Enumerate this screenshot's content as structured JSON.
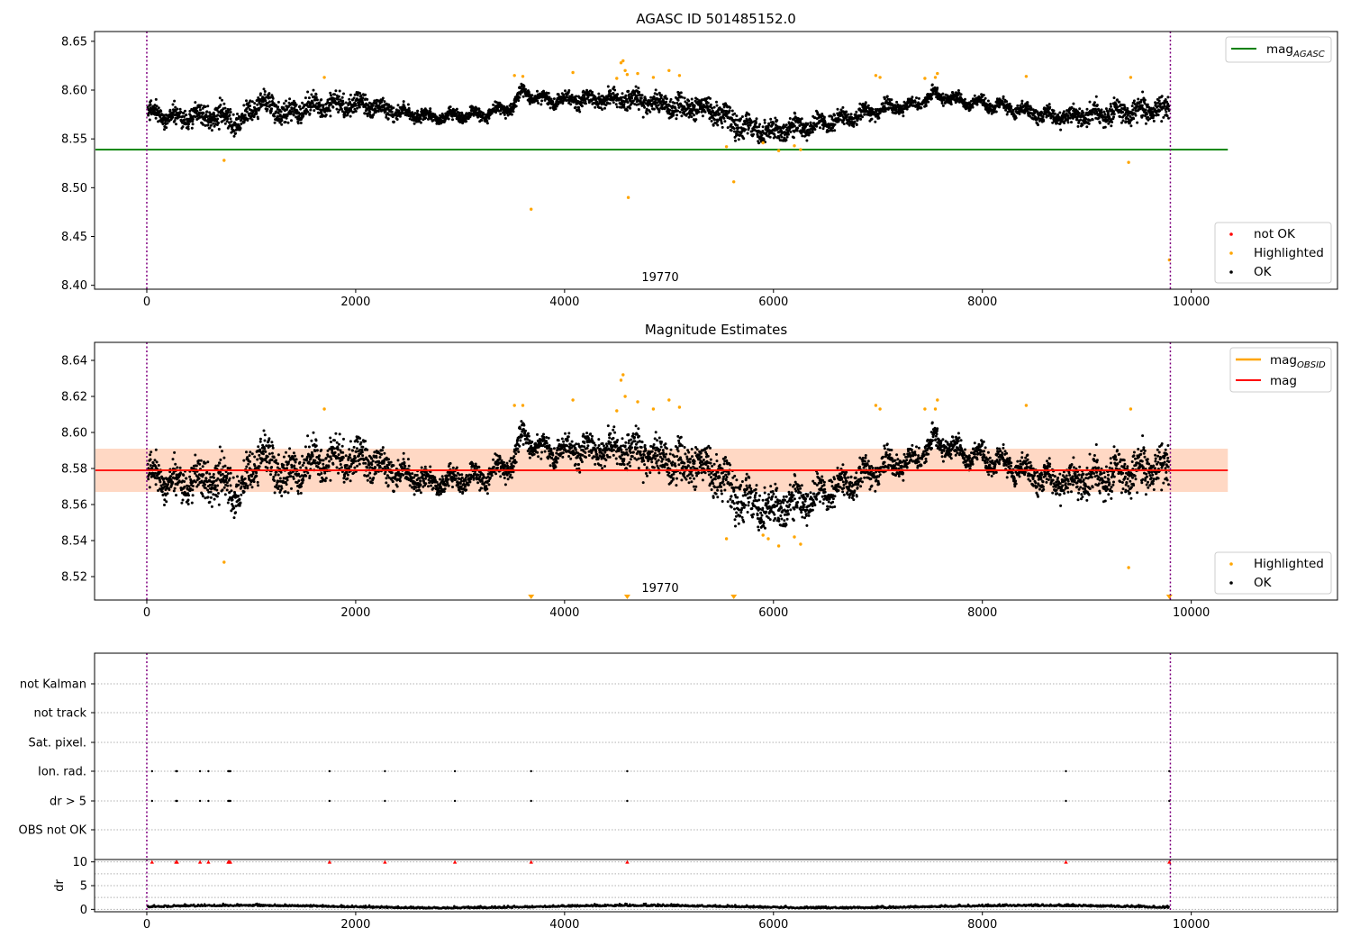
{
  "chart_data": [
    {
      "type": "scatter",
      "title": "AGASC ID 501485152.0",
      "xlim": [
        -500,
        11400
      ],
      "ylim": [
        8.396,
        8.66
      ],
      "xticks": [
        "0",
        "2000",
        "4000",
        "6000",
        "8000",
        "10000"
      ],
      "yticks": [
        "8.40",
        "8.45",
        "8.50",
        "8.55",
        "8.60",
        "8.65"
      ],
      "obsid_label": "19770",
      "obsid_boundaries": [
        0,
        9800
      ],
      "mag_agasc": 8.539,
      "legend_upper": [
        {
          "label": "mag",
          "subscript": "AGASC",
          "color": "#008000"
        }
      ],
      "legend_lower": [
        {
          "label": "not OK",
          "color": "#ff0000"
        },
        {
          "label": "Highlighted",
          "color": "#ffa500"
        },
        {
          "label": "OK",
          "color": "#000000"
        }
      ],
      "highlighted_points": [
        [
          740,
          8.528
        ],
        [
          1700,
          8.613
        ],
        [
          3520,
          8.615
        ],
        [
          3600,
          8.614
        ],
        [
          3680,
          8.478
        ],
        [
          4080,
          8.618
        ],
        [
          4500,
          8.612
        ],
        [
          4540,
          8.628
        ],
        [
          4560,
          8.63
        ],
        [
          4580,
          8.62
        ],
        [
          4600,
          8.616
        ],
        [
          4610,
          8.49
        ],
        [
          4700,
          8.617
        ],
        [
          4850,
          8.613
        ],
        [
          5000,
          8.62
        ],
        [
          5100,
          8.615
        ],
        [
          5550,
          8.542
        ],
        [
          5620,
          8.506
        ],
        [
          5900,
          8.546
        ],
        [
          6050,
          8.538
        ],
        [
          6200,
          8.543
        ],
        [
          6260,
          8.539
        ],
        [
          6980,
          8.615
        ],
        [
          7020,
          8.613
        ],
        [
          7450,
          8.612
        ],
        [
          7550,
          8.613
        ],
        [
          7570,
          8.617
        ],
        [
          8420,
          8.614
        ],
        [
          9400,
          8.526
        ],
        [
          9420,
          8.613
        ],
        [
          9790,
          8.426
        ]
      ]
    },
    {
      "type": "scatter",
      "title": "Magnitude Estimates",
      "xlim": [
        -500,
        11400
      ],
      "ylim": [
        8.507,
        8.65
      ],
      "xticks": [
        "0",
        "2000",
        "4000",
        "6000",
        "8000",
        "10000"
      ],
      "yticks": [
        "8.52",
        "8.54",
        "8.56",
        "8.58",
        "8.60",
        "8.62",
        "8.64"
      ],
      "obsid_label": "19770",
      "obsid_boundaries": [
        0,
        9800
      ],
      "mag": 8.579,
      "mag_band": [
        8.567,
        8.591
      ],
      "legend_upper": [
        {
          "label": "mag",
          "subscript": "OBSID",
          "color": "#ffa500"
        },
        {
          "label": "mag",
          "subscript": "",
          "color": "#ff0000"
        }
      ],
      "legend_lower": [
        {
          "label": "Highlighted",
          "color": "#ffa500"
        },
        {
          "label": "OK",
          "color": "#000000"
        }
      ],
      "highlighted_points": [
        [
          740,
          8.528
        ],
        [
          1700,
          8.613
        ],
        [
          3520,
          8.615
        ],
        [
          3600,
          8.615
        ],
        [
          4080,
          8.618
        ],
        [
          4500,
          8.612
        ],
        [
          4540,
          8.629
        ],
        [
          4560,
          8.632
        ],
        [
          4580,
          8.62
        ],
        [
          4700,
          8.617
        ],
        [
          4850,
          8.613
        ],
        [
          5000,
          8.618
        ],
        [
          5100,
          8.614
        ],
        [
          5550,
          8.541
        ],
        [
          5900,
          8.543
        ],
        [
          5950,
          8.541
        ],
        [
          6050,
          8.537
        ],
        [
          6200,
          8.542
        ],
        [
          6260,
          8.538
        ],
        [
          6980,
          8.615
        ],
        [
          7020,
          8.613
        ],
        [
          7450,
          8.613
        ],
        [
          7550,
          8.613
        ],
        [
          7570,
          8.618
        ],
        [
          8420,
          8.615
        ],
        [
          9400,
          8.525
        ],
        [
          9420,
          8.613
        ]
      ],
      "below_range_markers": [
        3680,
        4600,
        5620,
        9790
      ]
    },
    {
      "type": "scatter",
      "title": "",
      "xlim": [
        -500,
        11400
      ],
      "xticks": [
        "0",
        "2000",
        "4000",
        "6000",
        "8000",
        "10000"
      ],
      "flag_labels": [
        "not Kalman",
        "not track",
        "Sat. pixel.",
        "Ion. rad.",
        "dr > 5",
        "OBS not OK"
      ],
      "flag_events": {
        "Ion. rad.": [
          50,
          280,
          290,
          510,
          590,
          780,
          790,
          800,
          1750,
          2280,
          2950,
          3680,
          4600,
          8800,
          9790
        ],
        "dr > 5": [
          50,
          280,
          290,
          510,
          590,
          780,
          790,
          800,
          1750,
          2280,
          2950,
          3680,
          4600,
          8800,
          9790
        ]
      },
      "obsid_boundaries": [
        0,
        9800
      ]
    },
    {
      "type": "scatter",
      "ylabel": "dr",
      "xlim": [
        -500,
        11400
      ],
      "ylim": [
        -0.5,
        10.5
      ],
      "xticks": [
        "0",
        "2000",
        "4000",
        "6000",
        "8000",
        "10000"
      ],
      "yticks": [
        "0",
        "5",
        "10"
      ],
      "clipped_markers": [
        50,
        280,
        290,
        510,
        590,
        780,
        790,
        800,
        1750,
        2280,
        2950,
        3680,
        4600,
        8800,
        9790
      ],
      "obsid_boundaries": [
        0,
        9800
      ]
    }
  ]
}
